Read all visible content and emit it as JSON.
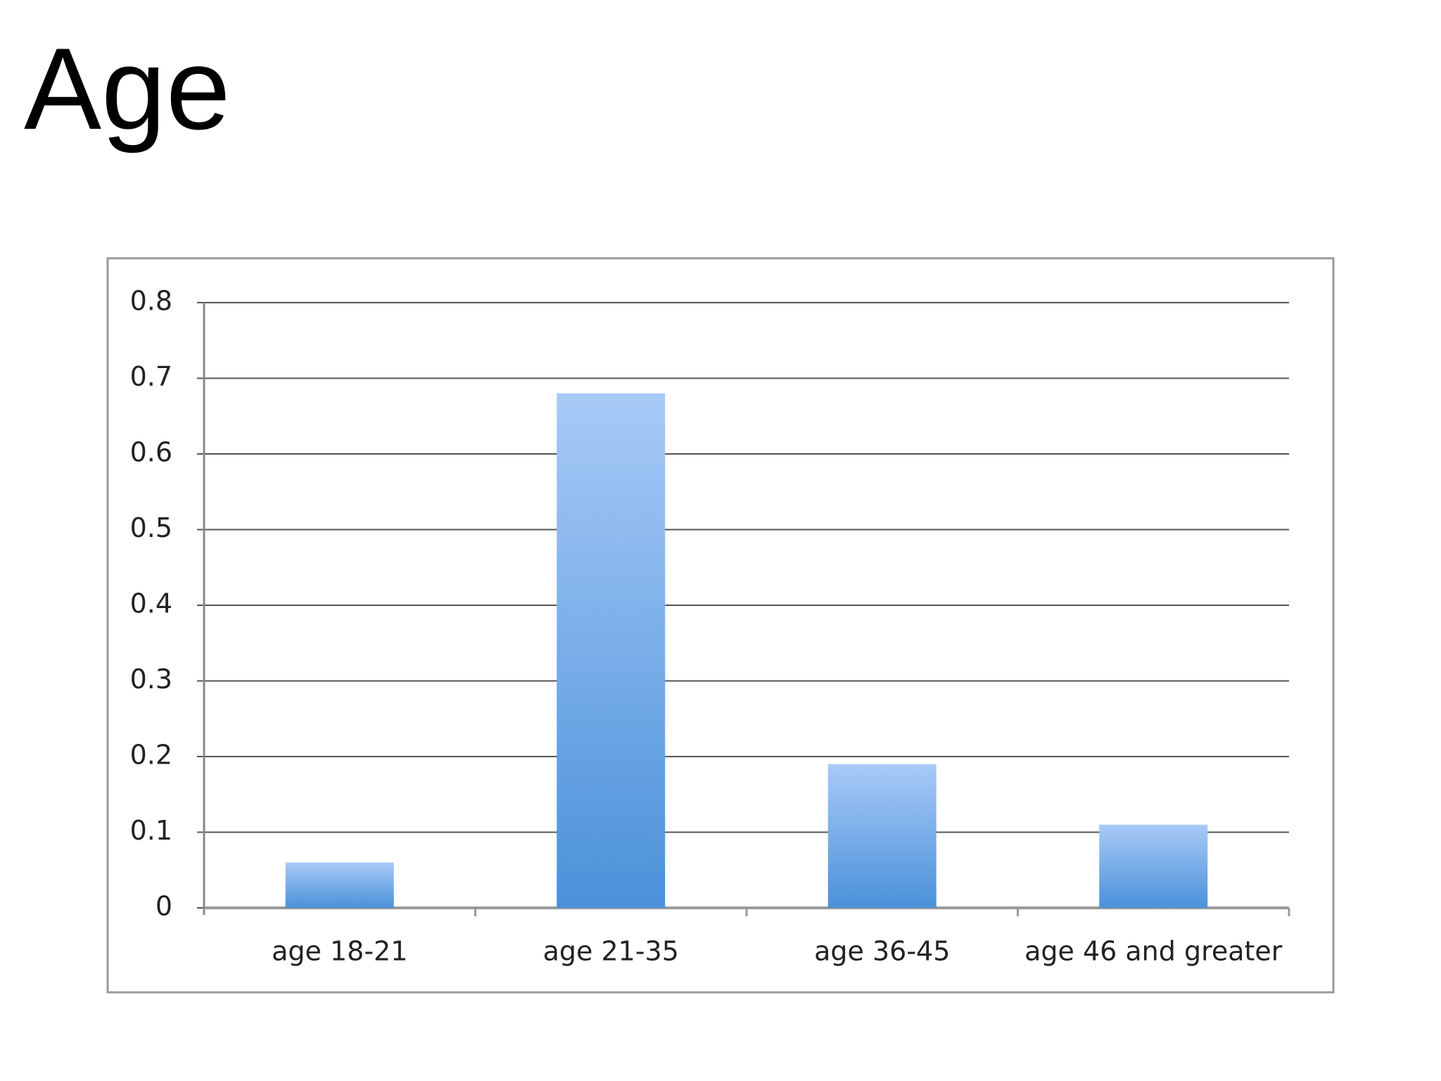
{
  "chart_data": {
    "type": "bar",
    "title": "Age",
    "categories": [
      "age 18-21",
      "age 21-35",
      "age 36-45",
      "age 46 and greater"
    ],
    "values": [
      0.06,
      0.68,
      0.19,
      0.11
    ],
    "ylim": [
      0,
      0.8
    ],
    "yticks": [
      0,
      0.1,
      0.2,
      0.3,
      0.4,
      0.5,
      0.6,
      0.7,
      0.8
    ],
    "grid": true
  }
}
